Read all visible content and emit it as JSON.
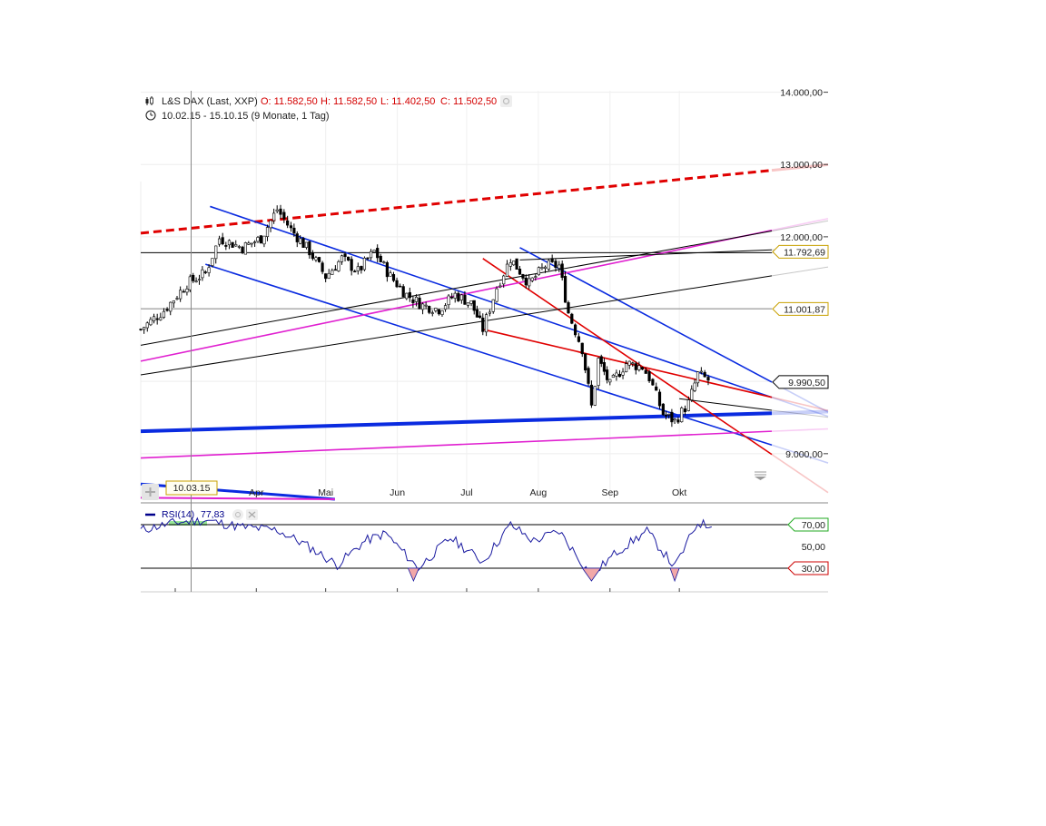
{
  "chart_data": {
    "type": "candlestick",
    "header": {
      "instrument": "L&S DAX (Last, XXP)",
      "open": "O: 11.582,50",
      "high": "H: 11.582,50",
      "low": "L: 11.402,50",
      "close": "C: 11.502,50",
      "range": "10.02.15 - 15.10.15 (9 Monate, 1 Tag)"
    },
    "x_axis": {
      "ticks": [
        "Apr",
        "Mai",
        "Jun",
        "Jul",
        "Aug",
        "Sep",
        "Okt"
      ],
      "crosshair_label": "10.03.15",
      "domain": [
        "2015-02-10",
        "2015-10-15"
      ]
    },
    "y_axis": {
      "ticks": [
        "14.000,00",
        "13.000,00",
        "12.000,00",
        "9.000,00"
      ],
      "ylim": [
        8370,
        14020
      ]
    },
    "price_labels": [
      {
        "text": "11.792,69",
        "value": 11792.69,
        "color": "#c8a000"
      },
      {
        "text": "11.001,87",
        "value": 11001.87,
        "color": "#c8a000"
      },
      {
        "text": "9.990,50",
        "value": 9990.5,
        "color": "#000000"
      }
    ],
    "candles": [
      {
        "date": "2015-02-10",
        "close": 10720
      },
      {
        "date": "2015-02-20",
        "close": 10980
      },
      {
        "date": "2015-03-02",
        "close": 11350
      },
      {
        "date": "2015-03-10",
        "close": 11500
      },
      {
        "date": "2015-03-16",
        "close": 11980
      },
      {
        "date": "2015-03-26",
        "close": 11850
      },
      {
        "date": "2015-04-03",
        "close": 11980
      },
      {
        "date": "2015-04-10",
        "close": 12380
      },
      {
        "date": "2015-04-16",
        "close": 12100
      },
      {
        "date": "2015-04-24",
        "close": 11800
      },
      {
        "date": "2015-05-01",
        "close": 11450
      },
      {
        "date": "2015-05-08",
        "close": 11700
      },
      {
        "date": "2015-05-15",
        "close": 11520
      },
      {
        "date": "2015-05-22",
        "close": 11800
      },
      {
        "date": "2015-05-29",
        "close": 11450
      },
      {
        "date": "2015-06-05",
        "close": 11200
      },
      {
        "date": "2015-06-12",
        "close": 11050
      },
      {
        "date": "2015-06-19",
        "close": 11000
      },
      {
        "date": "2015-06-26",
        "close": 11200
      },
      {
        "date": "2015-07-03",
        "close": 11080
      },
      {
        "date": "2015-07-08",
        "close": 10720
      },
      {
        "date": "2015-07-14",
        "close": 11300
      },
      {
        "date": "2015-07-20",
        "close": 11700
      },
      {
        "date": "2015-07-28",
        "close": 11350
      },
      {
        "date": "2015-08-04",
        "close": 11600
      },
      {
        "date": "2015-08-10",
        "close": 11600
      },
      {
        "date": "2015-08-14",
        "close": 10950
      },
      {
        "date": "2015-08-20",
        "close": 10450
      },
      {
        "date": "2015-08-24",
        "close": 9650
      },
      {
        "date": "2015-08-27",
        "close": 10300
      },
      {
        "date": "2015-09-01",
        "close": 9950
      },
      {
        "date": "2015-09-08",
        "close": 10250
      },
      {
        "date": "2015-09-15",
        "close": 10200
      },
      {
        "date": "2015-09-18",
        "close": 10050
      },
      {
        "date": "2015-09-24",
        "close": 9550
      },
      {
        "date": "2015-09-29",
        "close": 9450
      },
      {
        "date": "2015-10-05",
        "close": 9700
      },
      {
        "date": "2015-10-09",
        "close": 10100
      },
      {
        "date": "2015-10-15",
        "close": 9990
      }
    ],
    "rsi": {
      "label": "RSI(14)",
      "value": "77,83",
      "levels": [
        {
          "text": "70,00",
          "value": 70,
          "color": "#22aa22"
        },
        {
          "text": "50,00",
          "value": 50
        },
        {
          "text": "30,00",
          "value": 30,
          "color": "#cc0000"
        }
      ],
      "points": [
        {
          "date": "2015-02-10",
          "v": 65
        },
        {
          "date": "2015-02-25",
          "v": 72
        },
        {
          "date": "2015-03-10",
          "v": 74
        },
        {
          "date": "2015-03-25",
          "v": 68
        },
        {
          "date": "2015-04-10",
          "v": 65
        },
        {
          "date": "2015-04-22",
          "v": 52
        },
        {
          "date": "2015-05-06",
          "v": 33
        },
        {
          "date": "2015-05-18",
          "v": 55
        },
        {
          "date": "2015-05-27",
          "v": 62
        },
        {
          "date": "2015-06-10",
          "v": 30
        },
        {
          "date": "2015-06-24",
          "v": 58
        },
        {
          "date": "2015-07-08",
          "v": 36
        },
        {
          "date": "2015-07-20",
          "v": 70
        },
        {
          "date": "2015-07-30",
          "v": 55
        },
        {
          "date": "2015-08-10",
          "v": 64
        },
        {
          "date": "2015-08-24",
          "v": 23
        },
        {
          "date": "2015-09-04",
          "v": 45
        },
        {
          "date": "2015-09-17",
          "v": 64
        },
        {
          "date": "2015-09-29",
          "v": 31
        },
        {
          "date": "2015-10-09",
          "v": 72
        },
        {
          "date": "2015-10-15",
          "v": 68
        }
      ]
    },
    "trendlines": [
      {
        "color": "#e00000",
        "width": 3,
        "dash": true,
        "from": [
          "2015-02-10",
          12050
        ],
        "to": [
          "2015-11-10",
          12920
        ]
      },
      {
        "color": "#000000",
        "width": 1,
        "from": [
          "2015-02-10",
          11780
        ],
        "to": [
          "2015-11-10",
          11780
        ]
      },
      {
        "color": "#888888",
        "width": 1,
        "from": [
          "2015-02-10",
          11005
        ],
        "to": [
          "2015-11-10",
          11005
        ]
      },
      {
        "color": "#0a2be0",
        "width": 1.6,
        "from": [
          "2015-03-12",
          12420
        ],
        "to": [
          "2015-11-10",
          9780
        ]
      },
      {
        "color": "#0a2be0",
        "width": 1.6,
        "from": [
          "2015-03-10",
          11620
        ],
        "to": [
          "2015-11-10",
          9120
        ]
      },
      {
        "color": "#0a2be0",
        "width": 1.6,
        "from": [
          "2015-07-24",
          11850
        ],
        "to": [
          "2015-11-10",
          9990
        ]
      },
      {
        "color": "#0a2be0",
        "width": 4,
        "from": [
          "2015-02-10",
          9310
        ],
        "to": [
          "2015-11-10",
          9560
        ]
      },
      {
        "color": "#e00000",
        "width": 1.6,
        "from": [
          "2015-07-08",
          11700
        ],
        "to": [
          "2015-11-10",
          8990
        ]
      },
      {
        "color": "#e00000",
        "width": 1.6,
        "from": [
          "2015-07-08",
          10720
        ],
        "to": [
          "2015-11-10",
          9780
        ]
      },
      {
        "color": "#e020d0",
        "width": 1.6,
        "from": [
          "2015-02-10",
          10280
        ],
        "to": [
          "2015-11-10",
          12090
        ]
      },
      {
        "color": "#e020d0",
        "width": 1.6,
        "from": [
          "2015-02-10",
          8940
        ],
        "to": [
          "2015-11-10",
          9310
        ]
      },
      {
        "color": "#000000",
        "width": 1,
        "from": [
          "2015-02-10",
          10500
        ],
        "to": [
          "2015-11-10",
          12080
        ]
      },
      {
        "color": "#000000",
        "width": 1,
        "from": [
          "2015-02-10",
          10090
        ],
        "to": [
          "2015-11-10",
          11460
        ]
      },
      {
        "color": "#000000",
        "width": 1,
        "from": [
          "2015-07-24",
          11680
        ],
        "to": [
          "2015-11-10",
          11820
        ]
      },
      {
        "color": "#000000",
        "width": 1,
        "from": [
          "2015-10-01",
          9760
        ],
        "to": [
          "2015-11-10",
          9600
        ]
      },
      {
        "color": "#0a2be0",
        "width": 3,
        "from": [
          "2015-02-10",
          8580
        ],
        "to": [
          "2015-05-05",
          8370
        ]
      },
      {
        "color": "#e020d0",
        "width": 2,
        "from": [
          "2015-02-10",
          8390
        ],
        "to": [
          "2015-05-05",
          8370
        ]
      }
    ]
  }
}
